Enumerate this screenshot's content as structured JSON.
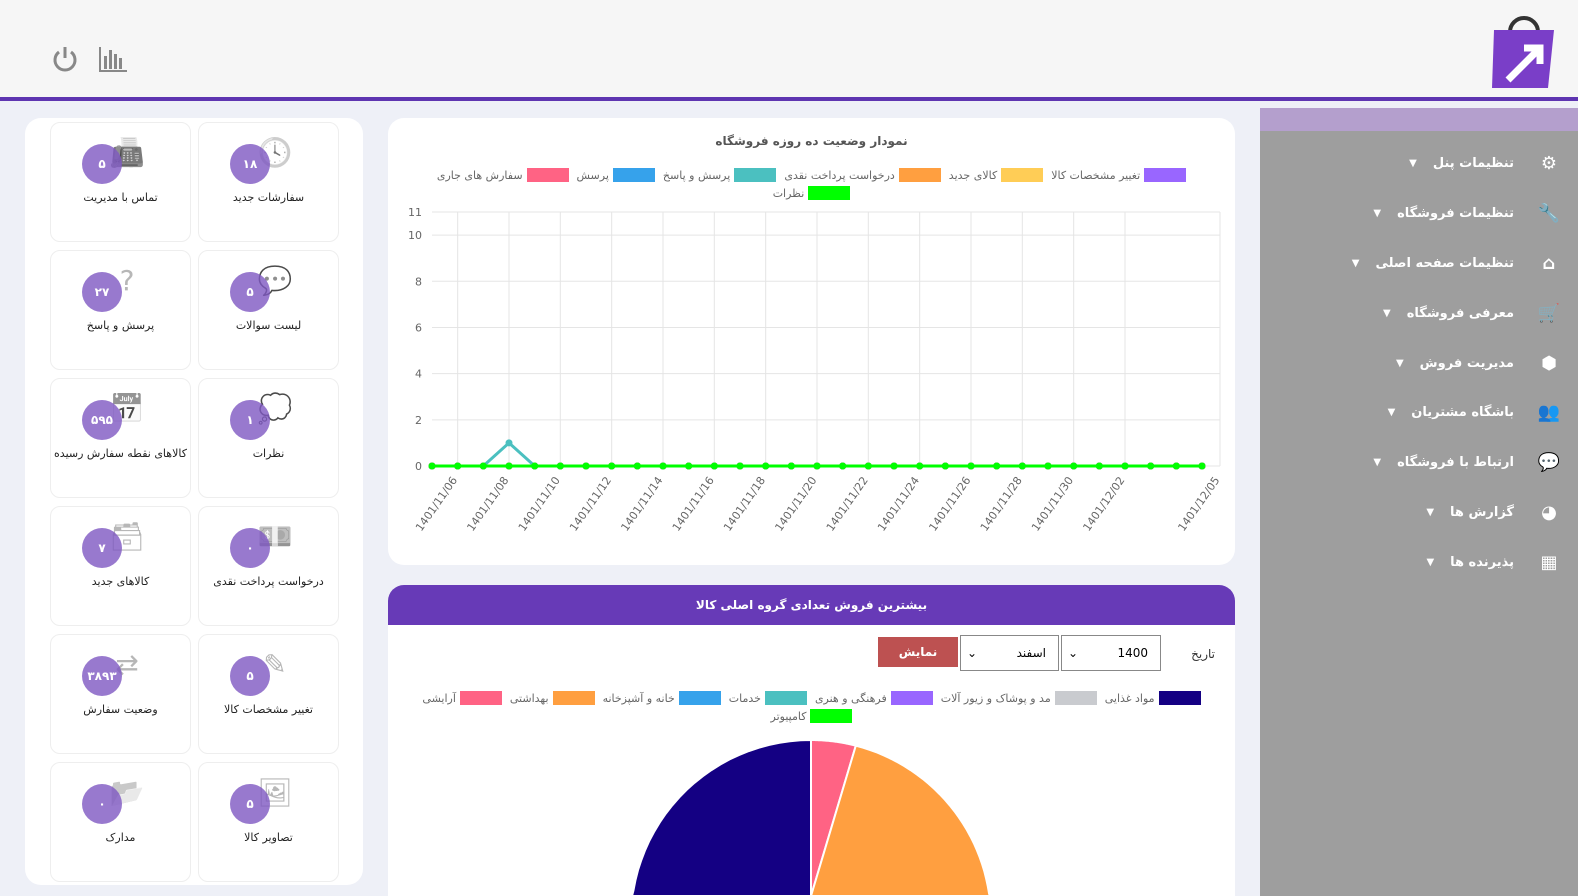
{
  "header": {
    "icons": [
      "power-icon",
      "bar-chart-icon"
    ],
    "accent": "#5e35b1"
  },
  "sidebar": {
    "items": [
      {
        "label": "تنظیمات پنل",
        "icon": "gears-icon"
      },
      {
        "label": "تنظیمات فروشگاه",
        "icon": "wrench-icon"
      },
      {
        "label": "تنظیمات صفحه اصلی",
        "icon": "home-icon"
      },
      {
        "label": "معرفی فروشگاه",
        "icon": "cart-icon"
      },
      {
        "label": "مدیریت فروش",
        "icon": "cube-icon"
      },
      {
        "label": "باشگاه مشتریان",
        "icon": "users-icon"
      },
      {
        "label": "ارتباط با فروشگاه",
        "icon": "comment-icon"
      },
      {
        "label": "گزارش ها",
        "icon": "pie-icon"
      },
      {
        "label": "پذیرنده ها",
        "icon": "building-icon"
      }
    ]
  },
  "tiles": [
    {
      "label": "سفارشات جدید",
      "count": "۱۸",
      "icon": "clock-icon"
    },
    {
      "label": "تماس با مدیریت",
      "count": "۵",
      "icon": "fax-icon"
    },
    {
      "label": "لیست سوالات",
      "count": "۵",
      "icon": "comments-icon"
    },
    {
      "label": "پرسش و پاسخ",
      "count": "۲۷",
      "icon": "question-icon"
    },
    {
      "label": "نظرات",
      "count": "۱",
      "icon": "comment-dots-icon"
    },
    {
      "label": "کالاهای نقطه سفارش رسیده",
      "count": "۵۹۵",
      "icon": "calendar-icon"
    },
    {
      "label": "درخواست پرداخت نقدی",
      "count": "۰",
      "icon": "money-icon"
    },
    {
      "label": "کالاهای جدید",
      "count": "۷",
      "icon": "archive-icon"
    },
    {
      "label": "تغییر مشخصات کالا",
      "count": "۵",
      "icon": "edit-icon"
    },
    {
      "label": "وضعیت سفارش",
      "count": "۳۸۹۳",
      "icon": "shuffle-icon"
    },
    {
      "label": "تصاویر کالا",
      "count": "۵",
      "icon": "image-icon"
    },
    {
      "label": "مدارک",
      "count": "۰",
      "icon": "folder-icon"
    }
  ],
  "chart_data": [
    {
      "type": "line",
      "title": "نمودار وضعیت ده روزه فروشگاه",
      "ylim": [
        0,
        11
      ],
      "yticks": [
        0,
        2,
        4,
        6,
        8,
        10,
        11
      ],
      "grid": true,
      "legend": "top",
      "x": [
        "1401/11/05",
        "1401/11/06",
        "1401/11/07",
        "1401/11/08",
        "1401/11/09",
        "1401/11/10",
        "1401/11/11",
        "1401/11/12",
        "1401/11/13",
        "1401/11/14",
        "1401/11/15",
        "1401/11/16",
        "1401/11/17",
        "1401/11/18",
        "1401/11/19",
        "1401/11/20",
        "1401/11/21",
        "1401/11/22",
        "1401/11/23",
        "1401/11/24",
        "1401/11/25",
        "1401/11/26",
        "1401/11/27",
        "1401/11/28",
        "1401/11/29",
        "1401/11/30",
        "1401/12/01",
        "1401/12/02",
        "1401/12/03",
        "1401/12/04",
        "1401/12/05"
      ],
      "xticks": [
        "1401/11/06",
        "1401/11/08",
        "1401/11/10",
        "1401/11/12",
        "1401/11/14",
        "1401/11/16",
        "1401/11/18",
        "1401/11/20",
        "1401/11/22",
        "1401/11/24",
        "1401/11/26",
        "1401/11/28",
        "1401/11/30",
        "1401/12/02",
        "1401/12/05"
      ],
      "series": [
        {
          "name": "تغییر مشخصات کالا",
          "color": "#9966ff",
          "peak": null
        },
        {
          "name": "کالای جدید",
          "color": "#ffcd56",
          "peak": null
        },
        {
          "name": "درخواست پرداخت نقدی",
          "color": "#ff9f40",
          "peak": null
        },
        {
          "name": "پرسش و پاسخ",
          "color": "#4bc0c0",
          "peak": "1401/11/08"
        },
        {
          "name": "پرسش",
          "color": "#36a2eb",
          "peak": null
        },
        {
          "name": "سفارش های جاری",
          "color": "#ff6384",
          "peak": null
        },
        {
          "name": "نظرات",
          "color": "#00ff00",
          "peak": null
        }
      ]
    },
    {
      "type": "pie",
      "title": "بیشترین فروش تعدادی گروه اصلی کالا",
      "series": [
        {
          "name": "مواد غذایی",
          "color": "#140083",
          "value": 56
        },
        {
          "name": "مد و پوشاک و زیور آلات",
          "color": "#c9cbcf",
          "value": 0
        },
        {
          "name": "فرهنگی و هنری",
          "color": "#9966ff",
          "value": 0
        },
        {
          "name": "خدمات",
          "color": "#4bc0c0",
          "value": 0
        },
        {
          "name": "خانه و آشپزخانه",
          "color": "#36a2eb",
          "value": 0
        },
        {
          "name": "بهداشتی",
          "color": "#ff9f40",
          "value": 40
        },
        {
          "name": "آرایشی",
          "color": "#ff6384",
          "value": 4
        },
        {
          "name": "کامپیوتر",
          "color": "#00ff00",
          "value": 0
        }
      ]
    }
  ],
  "filter": {
    "label": "تاریخ",
    "year": "1400",
    "month": "اسفند",
    "button": "نمایش"
  }
}
